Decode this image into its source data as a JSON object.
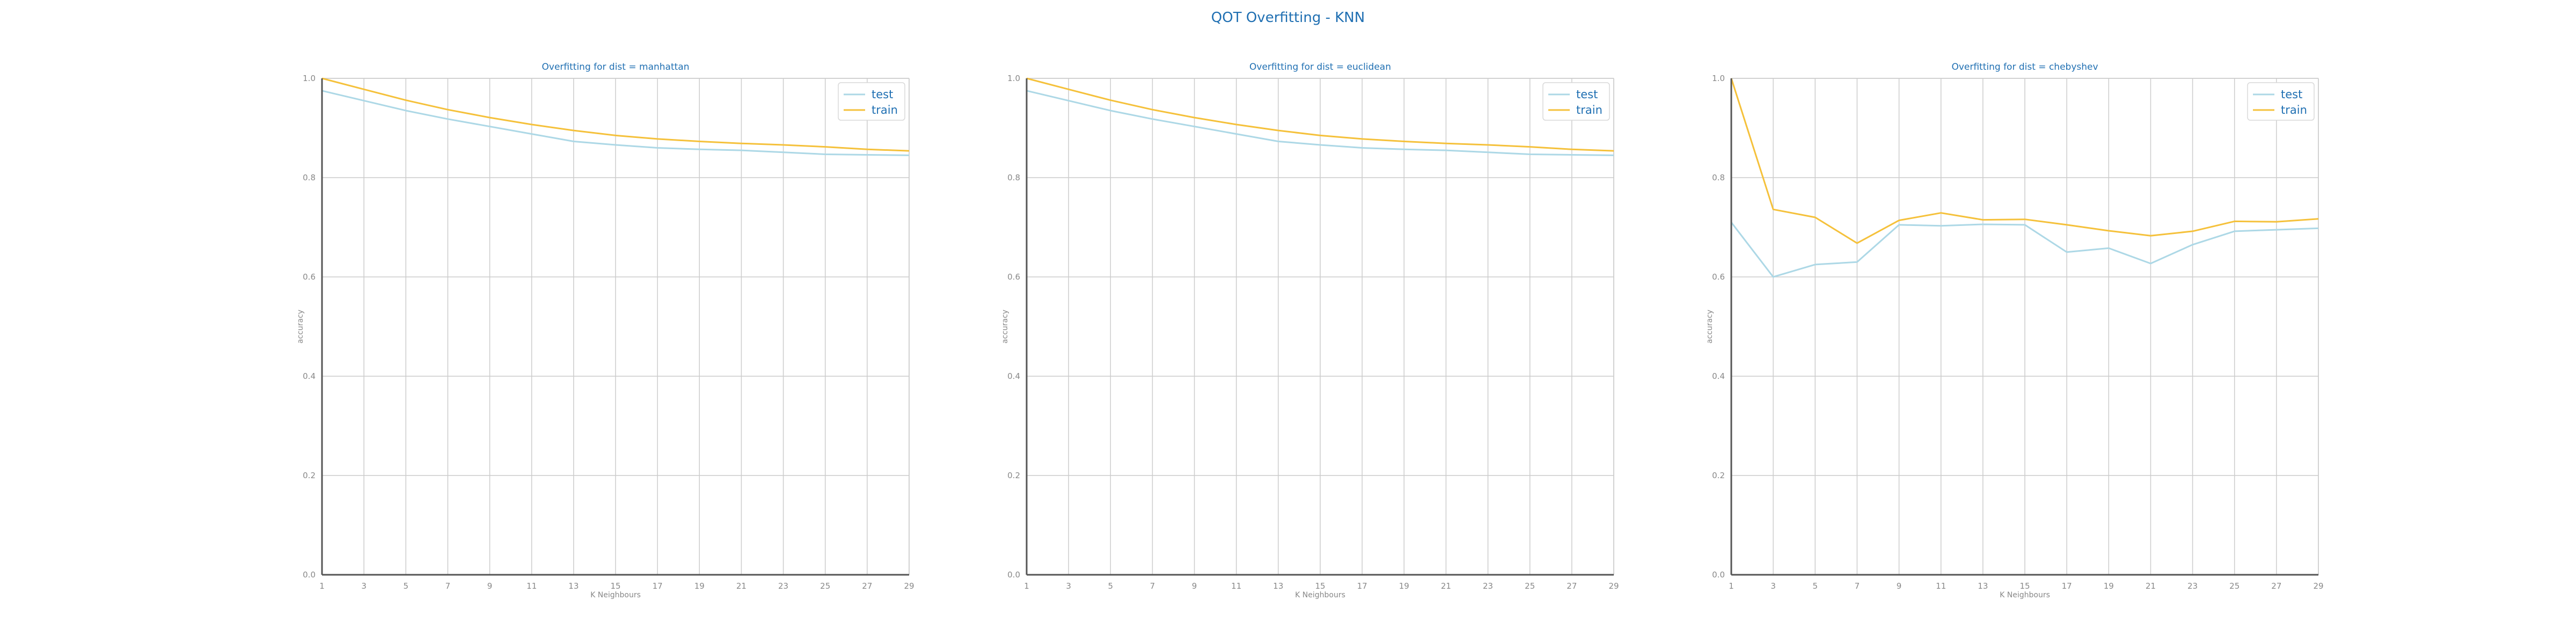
{
  "figure": {
    "title": "QOT Overfitting - KNN"
  },
  "colors": {
    "title": "#1f6fb2",
    "tick": "#888888",
    "grid": "#cccccc",
    "axis": "#555555",
    "test": "#add8e6",
    "train": "#f5c13b"
  },
  "chart_data": [
    {
      "type": "line",
      "title": "Overfitting for dist = manhattan",
      "xlabel": "K Neighbours",
      "ylabel": "accuracy",
      "x": [
        1,
        3,
        5,
        7,
        9,
        11,
        13,
        15,
        17,
        19,
        21,
        23,
        25,
        27,
        29
      ],
      "xlim": [
        1,
        29
      ],
      "ylim": [
        0,
        1
      ],
      "xticks": [
        1,
        3,
        5,
        7,
        9,
        11,
        13,
        15,
        17,
        19,
        21,
        23,
        25,
        27,
        29
      ],
      "yticks": [
        0.0,
        0.2,
        0.4,
        0.6,
        0.8,
        1.0
      ],
      "ytick_labels": [
        "0.0",
        "0.2",
        "0.4",
        "0.6",
        "0.8",
        "1.0"
      ],
      "grid": true,
      "legend": "top-right",
      "series": [
        {
          "name": "test",
          "color": "#add8e6",
          "values": [
            0.975,
            0.955,
            0.935,
            0.918,
            0.903,
            0.888,
            0.873,
            0.866,
            0.86,
            0.857,
            0.855,
            0.851,
            0.847,
            0.846,
            0.845
          ]
        },
        {
          "name": "train",
          "color": "#f5c13b",
          "values": [
            1.0,
            0.978,
            0.956,
            0.937,
            0.921,
            0.907,
            0.895,
            0.885,
            0.878,
            0.873,
            0.869,
            0.866,
            0.862,
            0.857,
            0.854
          ]
        }
      ]
    },
    {
      "type": "line",
      "title": "Overfitting for dist = euclidean",
      "xlabel": "K Neighbours",
      "ylabel": "accuracy",
      "x": [
        1,
        3,
        5,
        7,
        9,
        11,
        13,
        15,
        17,
        19,
        21,
        23,
        25,
        27,
        29
      ],
      "xlim": [
        1,
        29
      ],
      "ylim": [
        0,
        1
      ],
      "xticks": [
        1,
        3,
        5,
        7,
        9,
        11,
        13,
        15,
        17,
        19,
        21,
        23,
        25,
        27,
        29
      ],
      "yticks": [
        0.0,
        0.2,
        0.4,
        0.6,
        0.8,
        1.0
      ],
      "ytick_labels": [
        "0.0",
        "0.2",
        "0.4",
        "0.6",
        "0.8",
        "1.0"
      ],
      "grid": true,
      "legend": "top-right",
      "series": [
        {
          "name": "test",
          "color": "#add8e6",
          "values": [
            0.975,
            0.955,
            0.935,
            0.918,
            0.903,
            0.888,
            0.873,
            0.866,
            0.86,
            0.857,
            0.855,
            0.851,
            0.847,
            0.846,
            0.845
          ]
        },
        {
          "name": "train",
          "color": "#f5c13b",
          "values": [
            1.0,
            0.978,
            0.956,
            0.937,
            0.921,
            0.907,
            0.895,
            0.885,
            0.878,
            0.873,
            0.869,
            0.866,
            0.862,
            0.857,
            0.854
          ]
        }
      ]
    },
    {
      "type": "line",
      "title": "Overfitting for dist = chebyshev",
      "xlabel": "K Neighbours",
      "ylabel": "accuracy",
      "x": [
        1,
        3,
        5,
        7,
        9,
        11,
        13,
        15,
        17,
        19,
        21,
        23,
        25,
        27,
        29
      ],
      "xlim": [
        1,
        29
      ],
      "ylim": [
        0,
        1
      ],
      "xticks": [
        1,
        3,
        5,
        7,
        9,
        11,
        13,
        15,
        17,
        19,
        21,
        23,
        25,
        27,
        29
      ],
      "yticks": [
        0.0,
        0.2,
        0.4,
        0.6,
        0.8,
        1.0
      ],
      "ytick_labels": [
        "0.0",
        "0.2",
        "0.4",
        "0.6",
        "0.8",
        "1.0"
      ],
      "grid": true,
      "legend": "top-right",
      "series": [
        {
          "name": "test",
          "color": "#add8e6",
          "values": [
            0.71,
            0.6,
            0.625,
            0.63,
            0.705,
            0.703,
            0.706,
            0.705,
            0.65,
            0.658,
            0.627,
            0.665,
            0.692,
            0.695,
            0.698
          ]
        },
        {
          "name": "train",
          "color": "#f5c13b",
          "values": [
            1.0,
            0.736,
            0.72,
            0.668,
            0.714,
            0.729,
            0.715,
            0.716,
            0.705,
            0.693,
            0.683,
            0.692,
            0.712,
            0.711,
            0.717
          ]
        }
      ]
    }
  ]
}
